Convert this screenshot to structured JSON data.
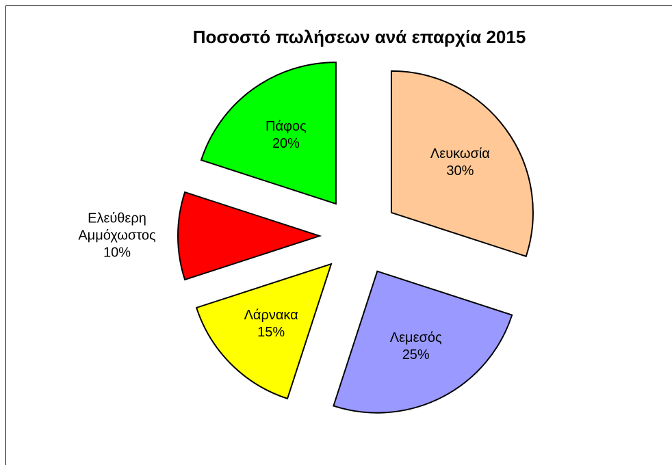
{
  "chart_data": {
    "type": "pie",
    "title": "Ποσοστό πωλήσεων ανά επαρχία 2015",
    "categories": [
      "Λευκωσία",
      "Λεμεσός",
      "Λάρνακα",
      "Ελεύθερη Αμμόχωστος",
      "Πάφος"
    ],
    "values": [
      30,
      25,
      15,
      10,
      20
    ],
    "value_labels": [
      "30%",
      "25%",
      "15%",
      "10%",
      "20%"
    ],
    "colors": [
      "#ffc896",
      "#9999ff",
      "#ffff00",
      "#ff0000",
      "#00ff00"
    ]
  }
}
